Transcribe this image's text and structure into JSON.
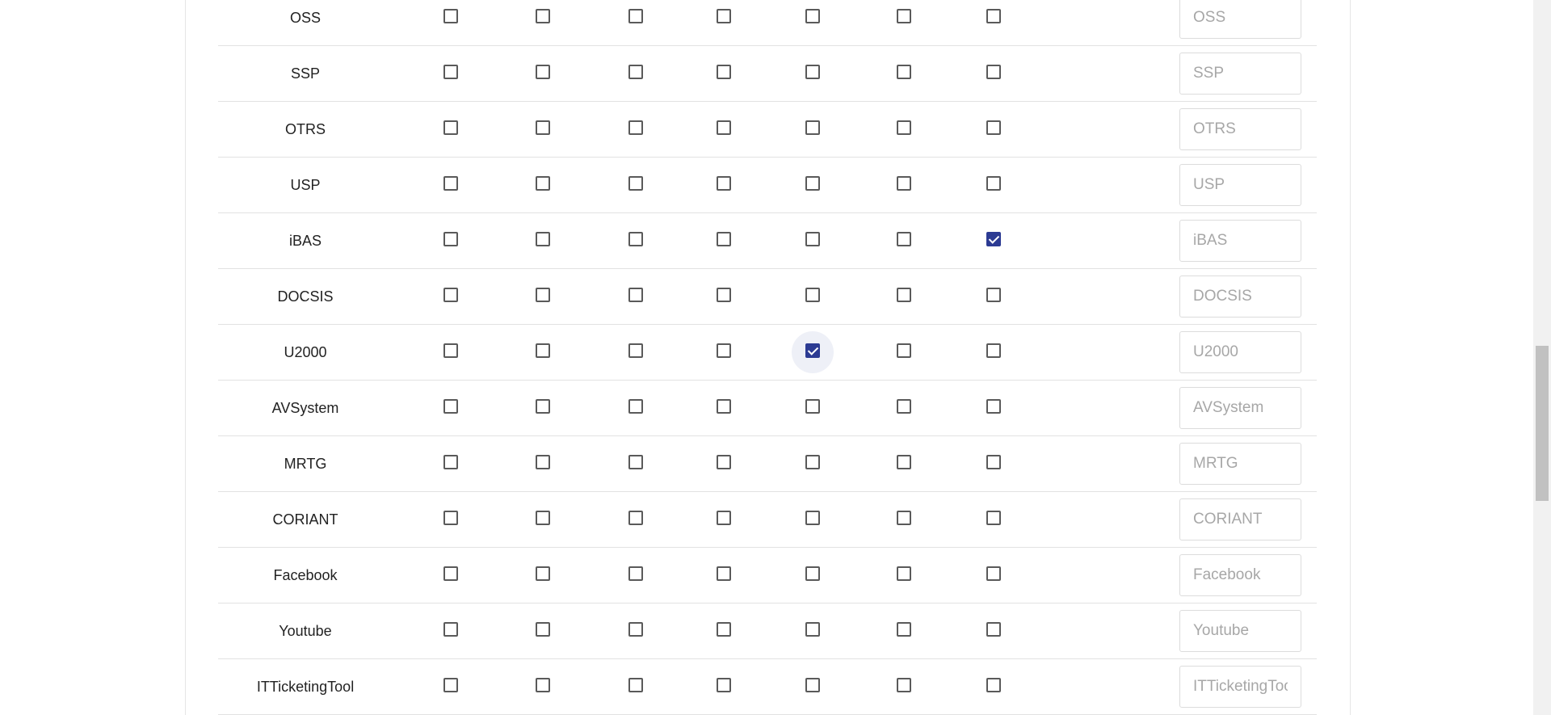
{
  "columns_count": 7,
  "rows": [
    {
      "label": "OSS",
      "checks": [
        false,
        false,
        false,
        false,
        false,
        false,
        false
      ],
      "placeholder": "OSS",
      "value": ""
    },
    {
      "label": "SSP",
      "checks": [
        false,
        false,
        false,
        false,
        false,
        false,
        false
      ],
      "placeholder": "SSP",
      "value": ""
    },
    {
      "label": "OTRS",
      "checks": [
        false,
        false,
        false,
        false,
        false,
        false,
        false
      ],
      "placeholder": "OTRS",
      "value": ""
    },
    {
      "label": "USP",
      "checks": [
        false,
        false,
        false,
        false,
        false,
        false,
        false
      ],
      "placeholder": "USP",
      "value": ""
    },
    {
      "label": "iBAS",
      "checks": [
        false,
        false,
        false,
        false,
        false,
        false,
        true
      ],
      "placeholder": "iBAS",
      "value": ""
    },
    {
      "label": "DOCSIS",
      "checks": [
        false,
        false,
        false,
        false,
        false,
        false,
        false
      ],
      "placeholder": "DOCSIS",
      "value": ""
    },
    {
      "label": "U2000",
      "checks": [
        false,
        false,
        false,
        false,
        true,
        false,
        false
      ],
      "placeholder": "U2000",
      "value": "",
      "focused_check": 4
    },
    {
      "label": "AVSystem",
      "checks": [
        false,
        false,
        false,
        false,
        false,
        false,
        false
      ],
      "placeholder": "AVSystem",
      "value": ""
    },
    {
      "label": "MRTG",
      "checks": [
        false,
        false,
        false,
        false,
        false,
        false,
        false
      ],
      "placeholder": "MRTG",
      "value": ""
    },
    {
      "label": "CORIANT",
      "checks": [
        false,
        false,
        false,
        false,
        false,
        false,
        false
      ],
      "placeholder": "CORIANT",
      "value": ""
    },
    {
      "label": "Facebook",
      "checks": [
        false,
        false,
        false,
        false,
        false,
        false,
        false
      ],
      "placeholder": "Facebook",
      "value": ""
    },
    {
      "label": "Youtube",
      "checks": [
        false,
        false,
        false,
        false,
        false,
        false,
        false
      ],
      "placeholder": "Youtube",
      "value": ""
    },
    {
      "label": "ITTicketingTool",
      "checks": [
        false,
        false,
        false,
        false,
        false,
        false,
        false
      ],
      "placeholder": "ITTicketingTool",
      "value": ""
    }
  ],
  "colors": {
    "checkbox_checked": "#2c3b93",
    "checkbox_border": "#5a5a5a",
    "row_divider": "#e2e2e2",
    "placeholder_text": "#a7a7a7"
  }
}
